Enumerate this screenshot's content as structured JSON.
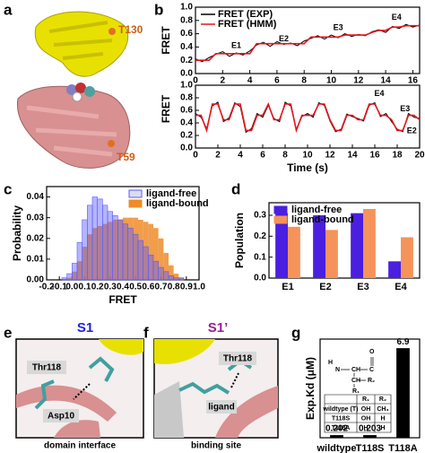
{
  "panel_labels": [
    "a",
    "b",
    "c",
    "d",
    "e",
    "f",
    "g"
  ],
  "figure_a": {
    "labels": [
      "T130",
      "T59"
    ]
  },
  "figure_e": {
    "title": "S1",
    "labels": [
      "Thr118",
      "Asp10"
    ],
    "caption": "domain interface"
  },
  "figure_f": {
    "title": "S1’",
    "labels": [
      "Thr118",
      "ligand"
    ],
    "caption": "binding site"
  },
  "inset_formula": [
    "H",
    "N",
    "CH",
    "C",
    "O",
    "CH",
    "R₂",
    "R₁"
  ],
  "inset_table": {
    "header": [
      "R₁",
      "R₂"
    ],
    "rows": [
      [
        "wildtype (T)",
        "OH",
        "CH₃"
      ],
      [
        "T118S",
        "OH",
        "H"
      ],
      [
        "T118A",
        "H",
        "H"
      ]
    ]
  },
  "chart_data": [
    {
      "type": "line",
      "y_label": "FRET",
      "x": [
        0,
        0.5,
        1,
        1.5,
        2,
        2.5,
        3,
        3.5,
        4,
        4.5,
        5,
        5.5,
        6,
        6.5,
        7,
        7.5,
        8,
        8.5,
        9,
        9.5,
        10,
        10.5,
        11,
        11.5,
        12,
        12.5,
        13,
        13.5,
        14,
        14.5,
        15,
        15.5,
        16,
        16.5
      ],
      "series": [
        {
          "name": "FRET (EXP)",
          "color": "#000000",
          "values": [
            0.22,
            0.18,
            0.24,
            0.29,
            0.33,
            0.26,
            0.31,
            0.28,
            0.34,
            0.43,
            0.47,
            0.41,
            0.48,
            0.44,
            0.46,
            0.42,
            0.49,
            0.53,
            0.57,
            0.52,
            0.58,
            0.54,
            0.6,
            0.56,
            0.59,
            0.57,
            0.63,
            0.66,
            0.62,
            0.71,
            0.68,
            0.74,
            0.7,
            0.73
          ]
        },
        {
          "name": "FRET (HMM)",
          "color": "#e8141c",
          "values": [
            0.2,
            0.2,
            0.2,
            0.3,
            0.3,
            0.3,
            0.3,
            0.3,
            0.3,
            0.45,
            0.45,
            0.45,
            0.45,
            0.45,
            0.45,
            0.45,
            0.45,
            0.55,
            0.55,
            0.55,
            0.55,
            0.55,
            0.58,
            0.58,
            0.58,
            0.58,
            0.62,
            0.65,
            0.65,
            0.7,
            0.7,
            0.72,
            0.72,
            0.72
          ]
        }
      ],
      "annotations": [
        "E1",
        "E2",
        "E3",
        "E4"
      ],
      "xlim": [
        0,
        16.5
      ],
      "xticks": [
        0,
        2,
        4,
        6,
        8,
        10,
        12,
        14,
        16
      ],
      "ylim": [
        0,
        1
      ],
      "yticks": [
        {
          "value": 0,
          "label": "0.0"
        },
        0.2,
        0.4,
        0.6,
        0.8,
        {
          "value": 1,
          "label": "1.0"
        }
      ],
      "legend": "upper left"
    },
    {
      "type": "line",
      "y_label": "FRET",
      "x_label": "Time (s)",
      "x": [
        0,
        0.5,
        1,
        1.5,
        2,
        2.5,
        3,
        3.5,
        4,
        4.5,
        5,
        5.5,
        6,
        6.5,
        7,
        7.5,
        8,
        8.5,
        9,
        9.5,
        10,
        10.5,
        11,
        11.5,
        12,
        12.5,
        13,
        13.5,
        14,
        14.5,
        15,
        15.5,
        16,
        16.5,
        17,
        17.5,
        18,
        18.5,
        19,
        19.5,
        20
      ],
      "series": [
        {
          "color": "#000000",
          "values": [
            0.55,
            0.49,
            0.31,
            0.67,
            0.73,
            0.42,
            0.48,
            0.72,
            0.66,
            0.25,
            0.31,
            0.55,
            0.49,
            0.68,
            0.47,
            0.42,
            0.73,
            0.67,
            0.3,
            0.5,
            0.55,
            0.49,
            0.72,
            0.68,
            0.43,
            0.26,
            0.3,
            0.54,
            0.5,
            0.47,
            0.43,
            0.68,
            0.72,
            0.5,
            0.55,
            0.42,
            0.3,
            0.26,
            0.55,
            0.49,
            0.47
          ]
        },
        {
          "color": "#e8141c",
          "values": [
            0.52,
            0.52,
            0.28,
            0.7,
            0.7,
            0.45,
            0.45,
            0.7,
            0.7,
            0.28,
            0.28,
            0.52,
            0.52,
            0.7,
            0.45,
            0.45,
            0.7,
            0.7,
            0.28,
            0.52,
            0.52,
            0.52,
            0.7,
            0.7,
            0.45,
            0.28,
            0.28,
            0.52,
            0.52,
            0.45,
            0.45,
            0.7,
            0.7,
            0.52,
            0.52,
            0.45,
            0.28,
            0.28,
            0.52,
            0.52,
            0.45
          ]
        }
      ],
      "annotations": [
        "E4",
        "E3",
        "E2"
      ],
      "xlim": [
        0,
        20
      ],
      "xticks": [
        0,
        2,
        4,
        6,
        8,
        10,
        12,
        14,
        16,
        18,
        20
      ],
      "ylim": [
        0,
        1
      ],
      "yticks": [
        {
          "value": 0,
          "label": "0.0"
        },
        0.2,
        0.4,
        0.6,
        0.8,
        {
          "value": 1,
          "label": "1.0"
        }
      ]
    },
    {
      "type": "histogram",
      "x_label": "FRET",
      "y_label": "Probability",
      "bins": [
        -0.2,
        -0.16,
        -0.12,
        -0.08,
        -0.04,
        0,
        0.04,
        0.08,
        0.12,
        0.16,
        0.2,
        0.24,
        0.28,
        0.32,
        0.36,
        0.4,
        0.44,
        0.48,
        0.52,
        0.56,
        0.6,
        0.64,
        0.68,
        0.72,
        0.76,
        0.8,
        0.84,
        0.88,
        0.92,
        0.96,
        1.0
      ],
      "series": [
        {
          "name": "ligand-free",
          "color": "#5b5bff",
          "values": [
            0,
            0,
            0,
            0.001,
            0.003,
            0.008,
            0.018,
            0.029,
            0.036,
            0.04,
            0.039,
            0.036,
            0.033,
            0.031,
            0.029,
            0.027,
            0.025,
            0.022,
            0.019,
            0.016,
            0.012,
            0.009,
            0.006,
            0.004,
            0.002,
            0.001,
            0.001,
            0,
            0,
            0
          ]
        },
        {
          "name": "ligand-bound",
          "color": "#ee8c2a",
          "values": [
            0,
            0,
            0,
            0,
            0.001,
            0.004,
            0.009,
            0.016,
            0.022,
            0.025,
            0.026,
            0.027,
            0.028,
            0.029,
            0.029,
            0.03,
            0.03,
            0.03,
            0.029,
            0.028,
            0.027,
            0.025,
            0.02,
            0.013,
            0.007,
            0.003,
            0.001,
            0,
            0,
            0
          ]
        }
      ],
      "xlim": [
        -0.2,
        1.0
      ],
      "xticks": [
        -0.2,
        -0.1,
        {
          "value": 0,
          "label": "0.0"
        },
        0.1,
        0.2,
        0.3,
        0.4,
        0.5,
        0.6,
        0.7,
        0.8,
        0.9,
        {
          "value": 1,
          "label": "1.0"
        }
      ],
      "ylim": [
        0,
        0.045
      ],
      "yticks": [
        {
          "value": 0,
          "label": "0.00"
        },
        0.01,
        0.02,
        0.03,
        0.04
      ],
      "legend": "upper right"
    },
    {
      "type": "bar",
      "y_label": "Population",
      "categories": [
        "E1",
        "E2",
        "E3",
        "E4"
      ],
      "series": [
        {
          "name": "ligand-free",
          "color": "#4a1fe0",
          "values": [
            0.31,
            0.3,
            0.31,
            0.08
          ]
        },
        {
          "name": "ligand-bound",
          "color": "#f5935a",
          "values": [
            0.245,
            0.23,
            0.33,
            0.195
          ]
        }
      ],
      "ylim": [
        0,
        0.36
      ],
      "yticks": [
        {
          "value": 0,
          "label": "0.0"
        },
        0.1,
        0.2,
        0.3
      ],
      "legend": "upper left"
    },
    {
      "type": "bar",
      "y_label": "Exp.Kd (μM)",
      "categories": [
        "wildtype",
        "T118S",
        "T118A"
      ],
      "values": [
        0.202,
        0.203,
        6.9
      ],
      "color": "#000000",
      "ylim": [
        0,
        7.6
      ]
    }
  ]
}
